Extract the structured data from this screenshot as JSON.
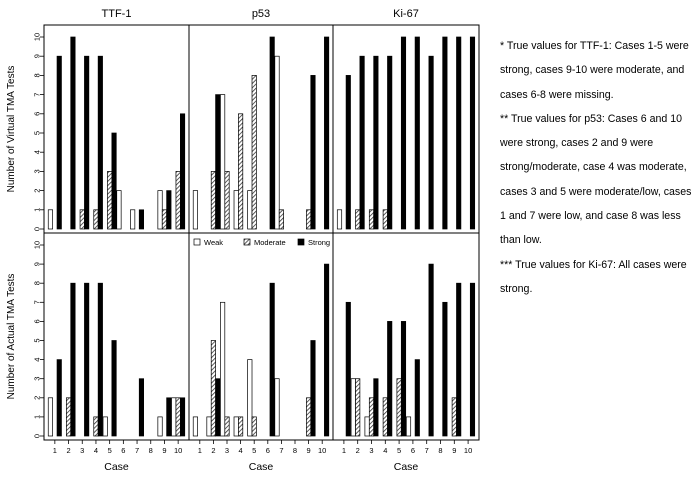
{
  "chart_data": {
    "type": "bar",
    "layout": "grouped bar chart panels, 3 columns x 2 rows",
    "xlabel": "Case",
    "categories": [
      "1",
      "2",
      "3",
      "4",
      "5",
      "6",
      "7",
      "8",
      "9",
      "10"
    ],
    "ylim": [
      0,
      10
    ],
    "yticks": [
      "0",
      "1",
      "2",
      "3",
      "4",
      "5",
      "6",
      "7",
      "8",
      "9",
      "10"
    ],
    "legend": {
      "placement": "top of bottom-middle panel",
      "entries": [
        {
          "name": "Weak",
          "fill": "white"
        },
        {
          "name": "Moderate",
          "fill": "hatched"
        },
        {
          "name": "Strong",
          "fill": "black"
        }
      ]
    },
    "columns": [
      "TTF-1",
      "p53",
      "Ki-67"
    ],
    "rows": [
      {
        "ylabel": "Number of Virtual TMA Tests"
      },
      {
        "ylabel": "Number of Actual TMA Tests"
      }
    ],
    "panels": [
      {
        "row": 0,
        "col": 0,
        "series": [
          {
            "name": "Weak",
            "values": [
              1,
              0,
              0,
              0,
              0,
              2,
              1,
              0,
              2,
              0
            ]
          },
          {
            "name": "Moderate",
            "values": [
              0,
              0,
              1,
              1,
              3,
              0,
              0,
              0,
              1,
              3
            ]
          },
          {
            "name": "Strong",
            "values": [
              9,
              10,
              9,
              9,
              5,
              0,
              1,
              0,
              2,
              6
            ]
          }
        ]
      },
      {
        "row": 0,
        "col": 1,
        "series": [
          {
            "name": "Weak",
            "values": [
              2,
              0,
              7,
              2,
              2,
              0,
              9,
              0,
              0,
              0
            ]
          },
          {
            "name": "Moderate",
            "values": [
              0,
              3,
              3,
              6,
              8,
              0,
              1,
              0,
              1,
              0
            ]
          },
          {
            "name": "Strong",
            "values": [
              0,
              7,
              0,
              0,
              0,
              10,
              0,
              0,
              8,
              10
            ]
          }
        ]
      },
      {
        "row": 0,
        "col": 2,
        "series": [
          {
            "name": "Weak",
            "values": [
              1,
              0,
              0,
              0,
              0,
              0,
              0,
              0,
              0,
              0
            ]
          },
          {
            "name": "Moderate",
            "values": [
              0,
              1,
              1,
              1,
              0,
              0,
              0,
              0,
              0,
              0
            ]
          },
          {
            "name": "Strong",
            "values": [
              8,
              9,
              9,
              9,
              10,
              10,
              9,
              10,
              10,
              10
            ]
          }
        ]
      },
      {
        "row": 1,
        "col": 0,
        "series": [
          {
            "name": "Weak",
            "values": [
              2,
              0,
              0,
              0,
              1,
              0,
              0,
              0,
              1,
              2
            ]
          },
          {
            "name": "Moderate",
            "values": [
              0,
              2,
              0,
              1,
              0,
              0,
              0,
              0,
              0,
              2
            ]
          },
          {
            "name": "Strong",
            "values": [
              4,
              8,
              8,
              8,
              5,
              0,
              3,
              0,
              2,
              2
            ]
          }
        ]
      },
      {
        "row": 1,
        "col": 1,
        "series": [
          {
            "name": "Weak",
            "values": [
              1,
              1,
              7,
              1,
              4,
              0,
              3,
              0,
              0,
              0
            ]
          },
          {
            "name": "Moderate",
            "values": [
              0,
              5,
              1,
              1,
              1,
              0,
              0,
              0,
              2,
              0
            ]
          },
          {
            "name": "Strong",
            "values": [
              0,
              3,
              0,
              0,
              0,
              8,
              0,
              0,
              5,
              9
            ]
          }
        ]
      },
      {
        "row": 1,
        "col": 2,
        "series": [
          {
            "name": "Weak",
            "values": [
              0,
              3,
              1,
              0,
              0,
              1,
              0,
              0,
              0,
              0
            ]
          },
          {
            "name": "Moderate",
            "values": [
              0,
              3,
              2,
              2,
              3,
              0,
              0,
              0,
              2,
              0
            ]
          },
          {
            "name": "Strong",
            "values": [
              7,
              0,
              3,
              6,
              6,
              4,
              9,
              7,
              8,
              8
            ]
          }
        ]
      }
    ]
  },
  "notes": [
    "* True values for TTF-1:  Cases 1-5 were strong, cases 9-10 were moderate, and cases 6-8 were missing.",
    "** True values for p53:  Cases 6 and 10 were strong, cases 2 and 9 were strong/moderate, case 4 was moderate, cases 3 and 5 were moderate/low, cases 1 and 7 were low, and case 8 was less than low.",
    "*** True values for Ki-67:  All cases were strong."
  ],
  "colors": {
    "strong": "#000000",
    "weak": "#ffffff",
    "moderate_hatch": "#444444",
    "frame": "#000000"
  }
}
